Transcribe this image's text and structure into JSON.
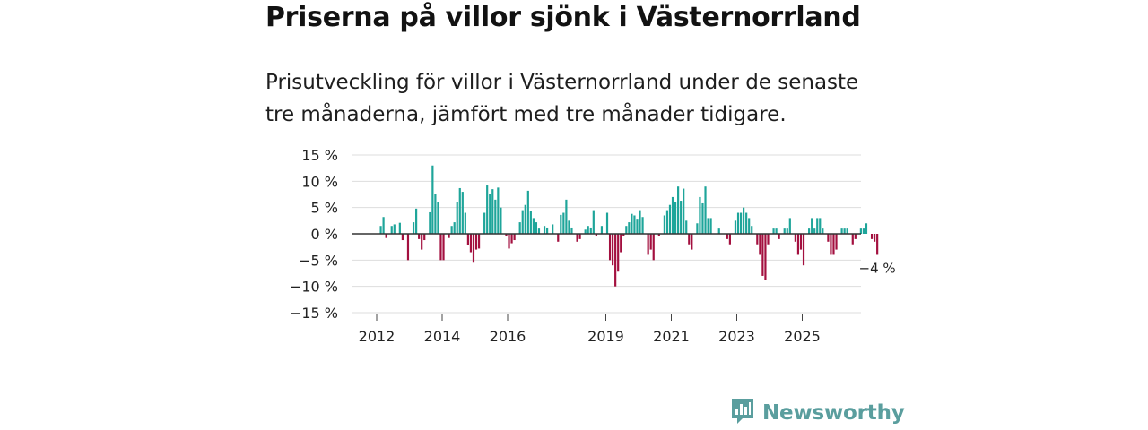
{
  "title": "Priserna på villor sjönk i Västernorrland",
  "subtitle": "Prisutveckling för villor i Västernorrland under de senaste tre månaderna, jämfört med tre månader tidigare.",
  "brand": {
    "name": "Newsworthy",
    "icon": "bar-chart-speech-bubble-icon",
    "color": "#5a9e9e"
  },
  "colors": {
    "positive": "#1ea59a",
    "negative": "#a3103f",
    "grid": "#dddddd",
    "zero_line": "#333333",
    "text": "#222222"
  },
  "chart_data": {
    "type": "bar",
    "title": "Priserna på villor sjönk i Västernorrland",
    "xlabel": "",
    "ylabel": "",
    "ylim": [
      -15,
      15
    ],
    "yticks": [
      15,
      10,
      5,
      0,
      -5,
      -10,
      -15
    ],
    "ytick_labels": [
      "15 %",
      "10 %",
      "5 %",
      "0 %",
      "−5 %",
      "−10 %",
      "−15 %"
    ],
    "xticks": [
      "2012",
      "2014",
      "2016",
      "2019",
      "2021",
      "2023",
      "2025"
    ],
    "grid": true,
    "start": "2012-01",
    "frequency": "monthly",
    "unit": "%",
    "values": [
      0,
      1.5,
      3.2,
      -0.8,
      0,
      1.5,
      1.8,
      0,
      2.1,
      -1.2,
      0,
      -5,
      0,
      2.2,
      4.8,
      -1,
      -3,
      -1.2,
      0,
      4.1,
      13,
      7.5,
      6,
      -5,
      -5,
      0,
      -0.8,
      1.5,
      2.2,
      6,
      8.7,
      8,
      4,
      -2.2,
      -3.5,
      -5.5,
      -3,
      -2.8,
      0,
      4,
      9.2,
      7.5,
      8.5,
      6.5,
      8.8,
      5,
      0,
      -0.5,
      -2.8,
      -1.8,
      -1.2,
      0,
      2.2,
      4.5,
      5.5,
      8.2,
      4.3,
      3,
      2.2,
      1,
      0,
      1.5,
      1.2,
      0,
      1.8,
      0,
      -1.5,
      3.6,
      4,
      6.5,
      2.5,
      1.2,
      0,
      -1.5,
      -1,
      0,
      0.8,
      1.5,
      1.2,
      4.5,
      -0.5,
      0,
      1.5,
      0,
      4,
      -5,
      -6,
      -10,
      -7.2,
      -3.5,
      -0.5,
      1.5,
      2.2,
      3.8,
      3.5,
      2.7,
      4.5,
      3.2,
      0,
      -4,
      -3,
      -5,
      0,
      -0.5,
      0,
      3.5,
      4.5,
      5.5,
      7,
      6,
      9,
      6.3,
      8.6,
      2.5,
      -2,
      -3,
      0,
      2,
      7,
      5.8,
      9,
      3,
      3,
      0,
      0,
      1,
      0,
      0,
      -1,
      -2,
      0,
      2.5,
      4,
      4,
      5,
      4,
      3,
      1.5,
      0,
      -2,
      -4,
      -8,
      -8.8,
      -2,
      0,
      1,
      1,
      -1,
      0,
      1,
      1,
      3,
      0,
      -1.5,
      -4,
      -3,
      -6,
      0,
      1,
      3,
      1,
      3,
      3,
      1,
      0,
      -1.5,
      -4,
      -4,
      -3,
      0,
      1,
      1,
      1,
      0,
      -2,
      -1,
      0,
      1,
      1,
      2,
      0,
      -1,
      -1.5,
      -4
    ],
    "last_value_label": "−4 %"
  }
}
